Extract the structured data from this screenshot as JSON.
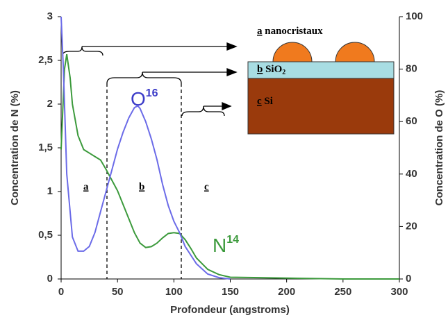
{
  "chart_data": {
    "type": "line",
    "xlabel": "Profondeur (angstroms)",
    "ylabel": "Concentration de N (%)",
    "y2label": "Concentration de O (%)",
    "xlim": [
      0,
      300
    ],
    "xticks": [
      0,
      50,
      100,
      150,
      200,
      250,
      300
    ],
    "ylim": [
      0,
      3
    ],
    "yticks": [
      0,
      {
        "value": 0.5,
        "label": "0,5"
      },
      1,
      {
        "value": 1.5,
        "label": "1,5"
      },
      2,
      {
        "value": 2.5,
        "label": "2,5"
      },
      3
    ],
    "y2lim": [
      0,
      100
    ],
    "y2ticks": [
      0,
      20,
      40,
      60,
      80,
      100
    ],
    "series": [
      {
        "color": "#3c9a3c",
        "axis": "y",
        "x": [
          0,
          3,
          5,
          8,
          10,
          15,
          20,
          25,
          30,
          35,
          40,
          45,
          50,
          55,
          60,
          65,
          70,
          75,
          80,
          85,
          90,
          95,
          100,
          105,
          110,
          115,
          120,
          130,
          140,
          150,
          200,
          250,
          300
        ],
        "values": [
          1.48,
          2.4,
          2.57,
          2.3,
          2.0,
          1.64,
          1.48,
          1.44,
          1.4,
          1.36,
          1.25,
          1.13,
          1.01,
          0.85,
          0.69,
          0.53,
          0.41,
          0.36,
          0.37,
          0.41,
          0.47,
          0.52,
          0.53,
          0.52,
          0.45,
          0.35,
          0.24,
          0.11,
          0.05,
          0.02,
          0.01,
          0,
          0
        ]
      },
      {
        "color": "#6b6be8",
        "axis": "y2",
        "x": [
          0,
          2,
          5,
          10,
          15,
          20,
          25,
          30,
          35,
          40,
          45,
          50,
          55,
          60,
          65,
          68,
          70,
          75,
          80,
          85,
          90,
          95,
          100,
          105,
          110,
          120,
          130,
          140,
          150
        ],
        "values": [
          100,
          80,
          40,
          16,
          10.6,
          10.6,
          12.4,
          17.7,
          25.7,
          33.6,
          41.5,
          49.5,
          56,
          61.4,
          65.3,
          66,
          65,
          60,
          53.4,
          45.5,
          36,
          28,
          22,
          17.7,
          12.4,
          5.8,
          1.9,
          0.5,
          0
        ]
      }
    ],
    "annotations": {
      "o_label": "O",
      "o_sup": "16",
      "n_label": "N",
      "n_sup": "14",
      "region_a": "a",
      "region_b": "b",
      "region_c": "c"
    },
    "inset": {
      "a_key": "a",
      "a_text": " nanocristaux",
      "b_key": "b",
      "b_text": " SiO",
      "b_sub": "2",
      "c_key": "c",
      "c_text": " Si"
    }
  }
}
